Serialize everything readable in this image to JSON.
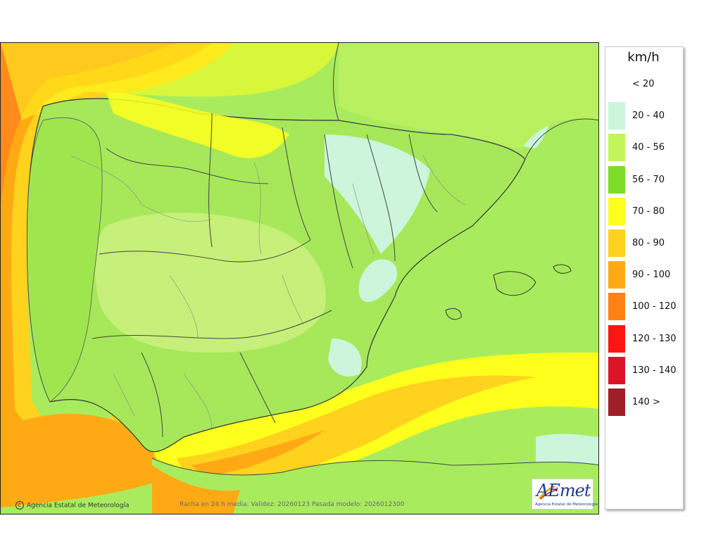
{
  "map": {
    "credit": "Agencia Estatal de Meteorología",
    "validity": "Racha en 24 h media. Validez: 20260123 Pasada modelo: 2026012300",
    "logo_word": "AEmet",
    "logo_sub": "Agencia Estatal de Meteorología"
  },
  "legend": {
    "unit": "km/h",
    "items": [
      {
        "label": "< 20",
        "color": "#ffffff"
      },
      {
        "label": "20 - 40",
        "color": "#ccf5dc"
      },
      {
        "label": "40 - 56",
        "color": "#c2f55a"
      },
      {
        "label": "56 - 70",
        "color": "#7ddc28"
      },
      {
        "label": "70 - 80",
        "color": "#ffff1e"
      },
      {
        "label": "80 - 90",
        "color": "#ffd21e"
      },
      {
        "label": "90 - 100",
        "color": "#ffaa14"
      },
      {
        "label": "100 - 120",
        "color": "#ff8214"
      },
      {
        "label": "120 - 130",
        "color": "#ff1414"
      },
      {
        "label": "130 - 140",
        "color": "#dc1428"
      },
      {
        "label": "140 >",
        "color": "#a01e28"
      }
    ]
  }
}
